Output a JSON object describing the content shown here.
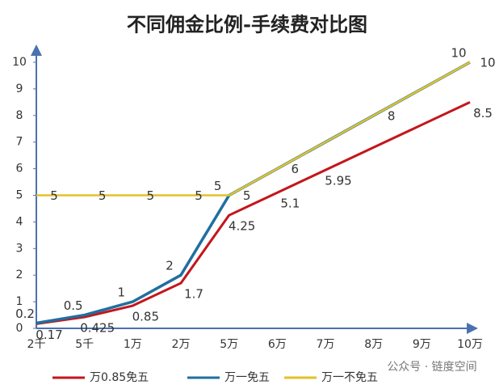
{
  "chart_data": {
    "type": "line",
    "title": "不同佣金比例-手续费对比图",
    "categories": [
      "2千",
      "5千",
      "1万",
      "2万",
      "5万",
      "6万",
      "7万",
      "8万",
      "9万",
      "10万"
    ],
    "series": [
      {
        "name": "万0.85免五",
        "color": "#c3161c",
        "values": [
          0.17,
          0.425,
          0.85,
          1.7,
          4.25,
          5.1,
          5.95,
          6.8,
          7.65,
          8.5
        ],
        "value_labels": [
          "0.17",
          "0.425",
          "0.85",
          "1.7",
          "4.25",
          "5.1",
          "5.95",
          null,
          null,
          "8.5"
        ]
      },
      {
        "name": "万一免五",
        "color": "#1f6fa0",
        "values": [
          0.2,
          0.5,
          1,
          2,
          5,
          6,
          7,
          8,
          9,
          10
        ],
        "value_labels": [
          "0.2",
          "0.5",
          "1",
          "2",
          "5",
          null,
          null,
          null,
          null,
          "10"
        ]
      },
      {
        "name": "万一不免五",
        "color": "#e2c22a",
        "values": [
          5,
          5,
          5,
          5,
          5,
          6,
          7,
          8,
          9,
          10
        ],
        "value_labels": [
          "5",
          "5",
          "5",
          "5",
          "5",
          "6",
          null,
          "8",
          null,
          "10"
        ]
      }
    ],
    "ylim": [
      0,
      10
    ],
    "yticks": [
      0,
      1,
      2,
      3,
      4,
      5,
      6,
      7,
      8,
      9,
      10
    ],
    "grid": false,
    "legend": "bottom",
    "watermark": "公众号 · 链度空间"
  }
}
